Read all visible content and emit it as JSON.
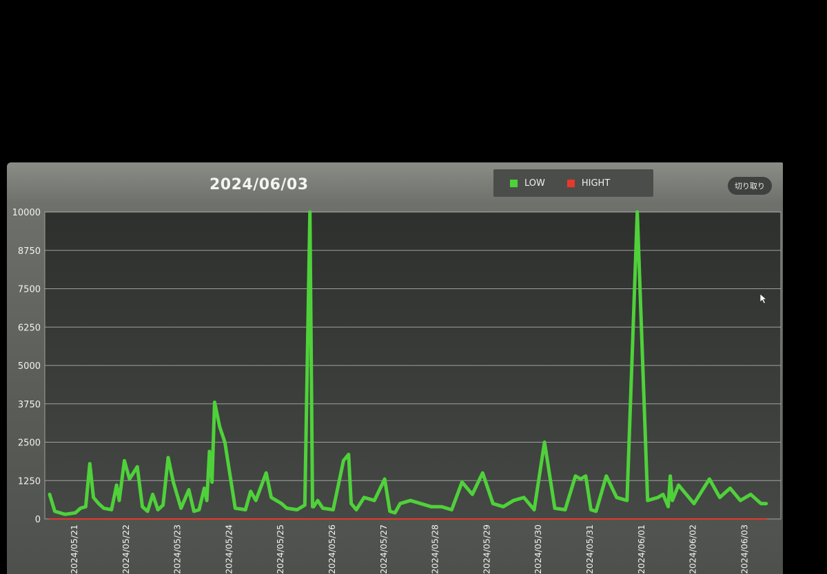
{
  "header": {
    "title": "2024/06/03",
    "crop_label": "切り取り"
  },
  "colors": {
    "low": "#4fd13a",
    "high": "#e8392a"
  },
  "chart_data": {
    "type": "line",
    "title": "2024/06/03",
    "ylim": [
      0,
      10000
    ],
    "y_ticks": [
      0,
      1250,
      2500,
      3750,
      5000,
      6250,
      7500,
      8750,
      10000
    ],
    "y_tick_labels": [
      "0",
      "1250",
      "2500",
      "3750",
      "5000",
      "6250",
      "7500",
      "8750",
      "10000"
    ],
    "x_tick_labels": [
      "2024/05/21",
      "2024/05/22",
      "2024/05/23",
      "2024/05/24",
      "2024/05/25",
      "2024/05/26",
      "2024/05/27",
      "2024/05/28",
      "2024/05/29",
      "2024/05/30",
      "2024/05/31",
      "2024/06/01",
      "2024/06/02",
      "2024/06/03"
    ],
    "legend": {
      "placement": "top-right"
    },
    "grid": true,
    "series": [
      {
        "name": "LOW",
        "color": "#4fd13a",
        "x": [
          0,
          0.1,
          0.3,
          0.5,
          0.6,
          0.7,
          0.78,
          0.85,
          0.95,
          1.05,
          1.2,
          1.3,
          1.35,
          1.45,
          1.55,
          1.7,
          1.8,
          1.9,
          2.0,
          2.1,
          2.2,
          2.3,
          2.4,
          2.55,
          2.7,
          2.8,
          2.9,
          3.0,
          3.05,
          3.1,
          3.15,
          3.2,
          3.3,
          3.4,
          3.6,
          3.8,
          3.9,
          4.0,
          4.2,
          4.3,
          4.5,
          4.6,
          4.8,
          4.95,
          5.05,
          5.1,
          5.12,
          5.16,
          5.2,
          5.3,
          5.5,
          5.7,
          5.8,
          5.85,
          5.95,
          6.1,
          6.3,
          6.5,
          6.6,
          6.7,
          6.8,
          7.0,
          7.2,
          7.4,
          7.6,
          7.8,
          8.0,
          8.2,
          8.4,
          8.6,
          8.8,
          9.0,
          9.2,
          9.4,
          9.6,
          9.8,
          10.0,
          10.2,
          10.3,
          10.4,
          10.5,
          10.6,
          10.8,
          11.0,
          11.2,
          11.4,
          11.6,
          11.8,
          11.9,
          12.0,
          12.04,
          12.08,
          12.2,
          12.5,
          12.8,
          13.0,
          13.2,
          13.4,
          13.6,
          13.8,
          13.9
        ],
        "values": [
          800,
          250,
          150,
          200,
          350,
          400,
          1800,
          700,
          500,
          350,
          300,
          1100,
          600,
          1900,
          1300,
          1700,
          400,
          250,
          800,
          300,
          450,
          2000,
          1200,
          350,
          950,
          250,
          300,
          1000,
          600,
          2200,
          1200,
          3800,
          3000,
          2500,
          350,
          300,
          900,
          600,
          1500,
          700,
          500,
          350,
          300,
          450,
          10000,
          400,
          400,
          500,
          600,
          350,
          300,
          1900,
          2100,
          500,
          300,
          700,
          600,
          1300,
          250,
          200,
          500,
          600,
          500,
          400,
          400,
          300,
          1200,
          800,
          1500,
          500,
          400,
          600,
          700,
          300,
          2500,
          350,
          300,
          1400,
          1300,
          1400,
          300,
          250,
          1400,
          700,
          600,
          10000,
          600,
          700,
          800,
          400,
          1400,
          600,
          1100,
          500,
          1300,
          700,
          1000,
          600,
          800,
          500,
          500
        ],
        "x_indexed_to_day": true
      },
      {
        "name": "HIGHT",
        "color": "#e8392a",
        "x": [
          0,
          13.9
        ],
        "values": [
          0,
          0
        ],
        "x_indexed_to_day": true
      }
    ]
  }
}
